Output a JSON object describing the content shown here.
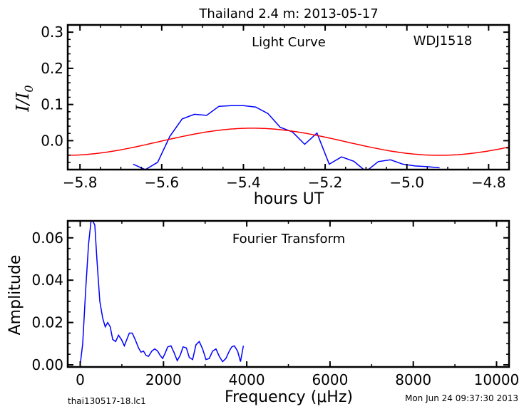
{
  "title": "Thailand 2.4 m:  2013-05-17",
  "footer": {
    "filename": "thai130517-18.lc1",
    "timestamp": "Mon Jun 24 09:37:30 2013"
  },
  "colors": {
    "data_line": "#0000ff",
    "model_line": "#ff0000",
    "axes": "#000000"
  },
  "chart_data": [
    {
      "type": "line",
      "title": "Light Curve",
      "annotation": "WDJ1518",
      "xlabel": "hours UT",
      "ylabel": "I/I0",
      "xlim": [
        -5.83,
        -4.75
      ],
      "ylim": [
        -0.08,
        0.32
      ],
      "xticks": [
        -5.8,
        -5.6,
        -5.4,
        -5.2,
        -5.0,
        -4.8
      ],
      "xtick_labels": [
        "−5.8",
        "−5.6",
        "−5.4",
        "−5.2",
        "−5.0",
        "−4.8"
      ],
      "yticks": [
        0.0,
        0.1,
        0.2,
        0.3
      ],
      "ytick_labels": [
        "0.0",
        "0.1",
        "0.2",
        "0.3"
      ],
      "series": [
        {
          "x": [
            -5.67,
            -5.64,
            -5.61,
            -5.58,
            -5.55,
            -5.52,
            -5.49,
            -5.46,
            -5.43,
            -5.4,
            -5.37,
            -5.34,
            -5.31,
            -5.28,
            -5.25,
            -5.22,
            -5.19,
            -5.16,
            -5.13,
            -5.1,
            -5.07,
            -5.04,
            -5.01,
            -4.98,
            -4.95,
            -4.92
          ],
          "y": [
            -0.065,
            -0.08,
            -0.06,
            0.012,
            0.06,
            0.073,
            0.07,
            0.095,
            0.097,
            0.097,
            0.093,
            0.075,
            0.037,
            0.024,
            -0.01,
            0.021,
            -0.065,
            -0.045,
            -0.057,
            -0.085,
            -0.058,
            -0.053,
            -0.065,
            -0.07,
            -0.072,
            -0.075
          ],
          "color": "#0000ff"
        },
        {
          "function": "0.0375*sin(2*pi*(x+5.6075)/0.916)-0.003",
          "color": "#ff0000"
        }
      ],
      "grid": false
    },
    {
      "type": "line",
      "title": "Fourier Transform",
      "xlabel": "Frequency (μHz)",
      "ylabel": "Amplitude",
      "xlim": [
        -300,
        10300
      ],
      "ylim": [
        -0.001,
        0.068
      ],
      "xticks": [
        0,
        2000,
        4000,
        6000,
        8000,
        10000
      ],
      "xtick_labels": [
        "0",
        "2000",
        "4000",
        "6000",
        "8000",
        "10000"
      ],
      "yticks": [
        0.0,
        0.02,
        0.04,
        0.06
      ],
      "ytick_labels": [
        "0.00",
        "0.02",
        "0.04",
        "0.06"
      ],
      "series": [
        {
          "x": [
            0,
            60,
            130,
            200,
            260,
            300,
            350,
            400,
            470,
            540,
            600,
            660,
            720,
            780,
            850,
            920,
            990,
            1060,
            1120,
            1180,
            1250,
            1320,
            1400,
            1460,
            1520,
            1580,
            1640,
            1720,
            1790,
            1860,
            1920,
            1980,
            2040,
            2100,
            2180,
            2250,
            2330,
            2400,
            2470,
            2550,
            2620,
            2700,
            2780,
            2860,
            2940,
            3020,
            3100,
            3180,
            3260,
            3340,
            3420,
            3500,
            3580,
            3640,
            3700,
            3780,
            3850,
            3920
          ],
          "y": [
            0.0,
            0.01,
            0.035,
            0.057,
            0.068,
            0.068,
            0.066,
            0.05,
            0.03,
            0.022,
            0.018,
            0.02,
            0.018,
            0.012,
            0.011,
            0.014,
            0.012,
            0.009,
            0.012,
            0.015,
            0.015,
            0.012,
            0.008,
            0.006,
            0.0065,
            0.0045,
            0.004,
            0.0065,
            0.0075,
            0.0065,
            0.0045,
            0.003,
            0.0055,
            0.0085,
            0.009,
            0.006,
            0.002,
            0.0045,
            0.0085,
            0.008,
            0.0035,
            0.0025,
            0.0095,
            0.011,
            0.0075,
            0.0025,
            0.003,
            0.0065,
            0.0075,
            0.004,
            0.0015,
            0.003,
            0.0065,
            0.0085,
            0.009,
            0.0065,
            0.0015,
            0.009
          ],
          "color": "#0000ff"
        }
      ],
      "grid": false
    }
  ]
}
